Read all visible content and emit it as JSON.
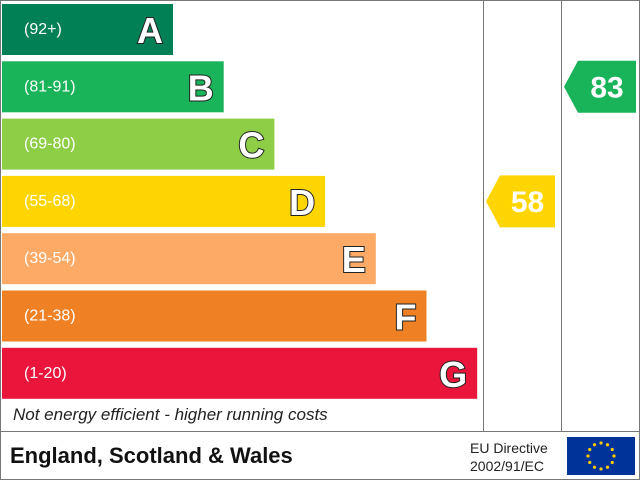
{
  "chart_data": {
    "type": "bar",
    "bands": [
      {
        "range": "(92+)",
        "letter": "A",
        "color": "#008054",
        "min": 92,
        "max": 100
      },
      {
        "range": "(81-91)",
        "letter": "B",
        "color": "#19b459",
        "min": 81,
        "max": 91
      },
      {
        "range": "(69-80)",
        "letter": "C",
        "color": "#8dce46",
        "min": 69,
        "max": 80
      },
      {
        "range": "(55-68)",
        "letter": "D",
        "color": "#ffd500",
        "min": 55,
        "max": 68
      },
      {
        "range": "(39-54)",
        "letter": "E",
        "color": "#fcaa65",
        "min": 39,
        "max": 54
      },
      {
        "range": "(21-38)",
        "letter": "F",
        "color": "#ef8023",
        "min": 21,
        "max": 38
      },
      {
        "range": "(1-20)",
        "letter": "G",
        "color": "#e9153b",
        "min": 1,
        "max": 20
      }
    ],
    "current": {
      "value": 58,
      "color": "#ffd500"
    },
    "potential": {
      "value": 83,
      "color": "#19b459"
    },
    "footer_note": "Not energy efficient - higher running costs",
    "region": "England, Scotland & Wales",
    "directive": [
      "EU Directive",
      "2002/91/EC"
    ]
  },
  "eu_flag": {
    "background": "#003399",
    "stars": "#ffcc00"
  }
}
